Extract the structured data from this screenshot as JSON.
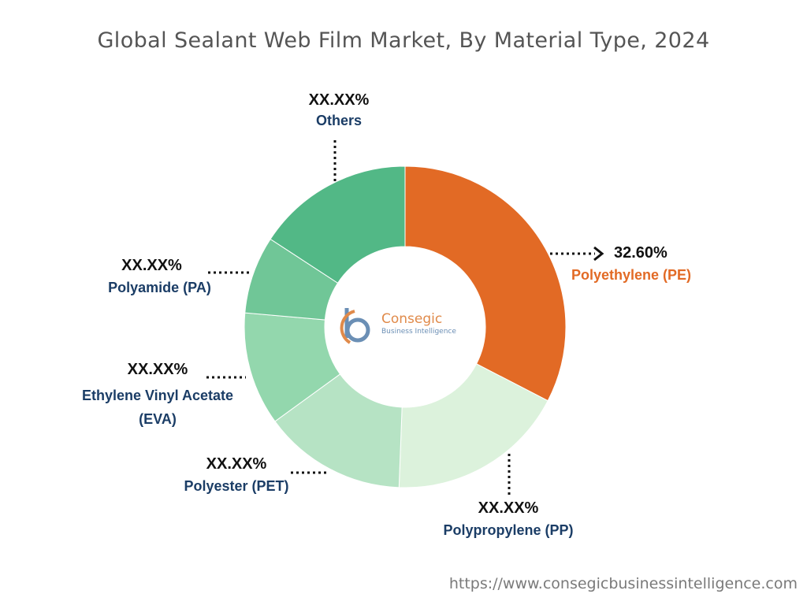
{
  "title": "Global Sealant Web Film Market, By Material Type, 2024",
  "footer_url": "https://www.consegicbusinessintelligence.com",
  "logo": {
    "name": "Consegic",
    "tagline": "Business Intelligence"
  },
  "chart_data": {
    "type": "pie",
    "title": "Global Sealant Web Film Market, By Material Type, 2024",
    "slices": [
      {
        "label": "Polyethylene (PE)",
        "value_label": "32.60%",
        "value": 32.6,
        "color": "#e26a25"
      },
      {
        "label": "Polypropylene (PP)",
        "value_label": "XX.XX%",
        "value": 18.0,
        "color": "#dcf2dc"
      },
      {
        "label": "Polyester (PET)",
        "value_label": "XX.XX%",
        "value": 14.4,
        "color": "#b6e3c4"
      },
      {
        "label": "Ethylene Vinyl Acetate (EVA)",
        "value_label": "XX.XX%",
        "value": 11.4,
        "color": "#93d7ad"
      },
      {
        "label": "Polyamide (PA)",
        "value_label": "XX.XX%",
        "value": 7.8,
        "color": "#70c697"
      },
      {
        "label": "Others",
        "value_label": "XX.XX%",
        "value": 15.8,
        "color": "#52b886"
      }
    ]
  }
}
